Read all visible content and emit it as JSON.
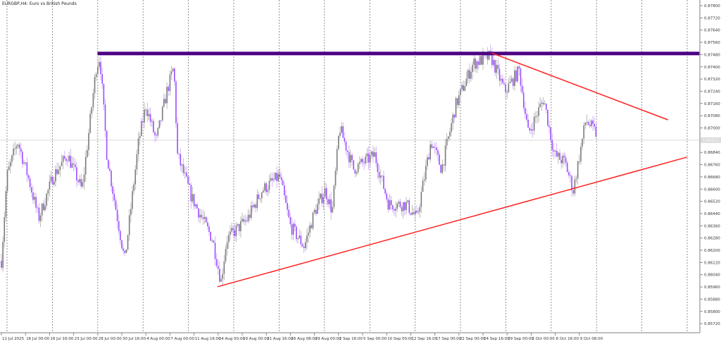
{
  "header": {
    "title": "EURGBP,H4:  Euro vs British Pounds"
  },
  "chart_data": {
    "type": "candlestick",
    "symbol": "EURGBP",
    "timeframe": "H4",
    "title": "EURGBP,H4:  Euro vs British Pounds",
    "ylim": [
      0.8568,
      0.8784
    ],
    "y_ticks": [
      "0.87800",
      "0.87720",
      "0.87640",
      "0.87560",
      "0.87480",
      "0.87400",
      "0.87320",
      "0.87240",
      "0.87160",
      "0.87080",
      "0.87000",
      "0.86840",
      "0.86760",
      "0.86680",
      "0.86600",
      "0.86520",
      "0.86440",
      "0.86360",
      "0.86280",
      "0.86200",
      "0.86120",
      "0.86040",
      "0.85960",
      "0.85880",
      "0.85800",
      "0.85720"
    ],
    "current_price": "0.86920",
    "x_ticks": [
      "11 Jul 2025",
      "16 Jul 00:00",
      "18 Jul 16:00",
      "23 Jul 00:00",
      "28 Jul 00:00",
      "30 Jul 16:00",
      "4 Aug 00:00",
      "7 Aug 00:00",
      "11 Aug 16:00",
      "14 Aug 00:00",
      "19 Aug 00:00",
      "21 Aug 16:00",
      "26 Aug 08:00",
      "29 Aug 00:00",
      "2 Sep 16:00",
      "5 Sep 00:00",
      "10 Sep 00:00",
      "12 Sep 16:00",
      "17 Sep 00:00",
      "22 Sep 00:00",
      "24 Sep 16:00",
      "29 Sep 00:00",
      "2 Oct 00:00",
      "6 Oct 16:00",
      "9 Oct 08:00"
    ],
    "grid": "vertical dashed",
    "close_path": [
      0.86131,
      0.86685,
      0.86915,
      0.86685,
      0.86408,
      0.86685,
      0.86823,
      0.86592,
      0.87399,
      0.87468,
      0.86823,
      0.86408,
      0.86131,
      0.86915,
      0.87146,
      0.86915,
      0.87238,
      0.87399,
      0.86823,
      0.86546,
      0.8627,
      0.85993,
      0.8627,
      0.86408,
      0.86592,
      0.86685,
      0.86362,
      0.86224,
      0.86454,
      0.86592,
      0.86454,
      0.87007,
      0.86731,
      0.86823,
      0.865,
      0.865,
      0.86408,
      0.86915,
      0.86731,
      0.87146,
      0.87422,
      0.87468,
      0.87238,
      0.87376,
      0.86961,
      0.87192,
      0.86823,
      0.86777,
      0.86592,
      0.87053,
      0.86961
    ],
    "close_path_times": [
      0,
      0.23,
      0.67,
      1.1,
      1.55,
      2.15,
      2.75,
      3.35,
      3.94,
      4.09,
      4.38,
      4.82,
      5.12,
      5.7,
      6.0,
      6.43,
      6.87,
      7.16,
      7.31,
      7.9,
      8.77,
      9.12,
      9.35,
      10.23,
      10.82,
      11.55,
      11.99,
      12.57,
      13.01,
      13.45,
      13.74,
      14.04,
      14.62,
      15.5,
      16.08,
      16.81,
      17.25,
      17.84,
      18.28,
      18.86,
      19.59,
      20.32,
      20.91,
      21.5,
      21.88,
      22.52,
      22.96,
      23.4,
      23.75,
      24.27,
      24.71
    ],
    "lines": [
      {
        "kind": "horizontal",
        "price": 0.87487,
        "color": "#4b0082",
        "from_time": 3.99
      },
      {
        "kind": "trend",
        "color": "#ff2020",
        "points": [
          [
            20.35,
            0.87491
          ],
          [
            27.68,
            0.87053
          ]
        ]
      },
      {
        "kind": "trend",
        "color": "#ff2020",
        "points": [
          [
            8.97,
            0.85961
          ],
          [
            28.47,
            0.86809
          ]
        ]
      }
    ],
    "colors": {
      "bull": "#7a7a7a",
      "bear": "#9b4dff",
      "grid": "#888888",
      "axis": "#999999"
    }
  }
}
